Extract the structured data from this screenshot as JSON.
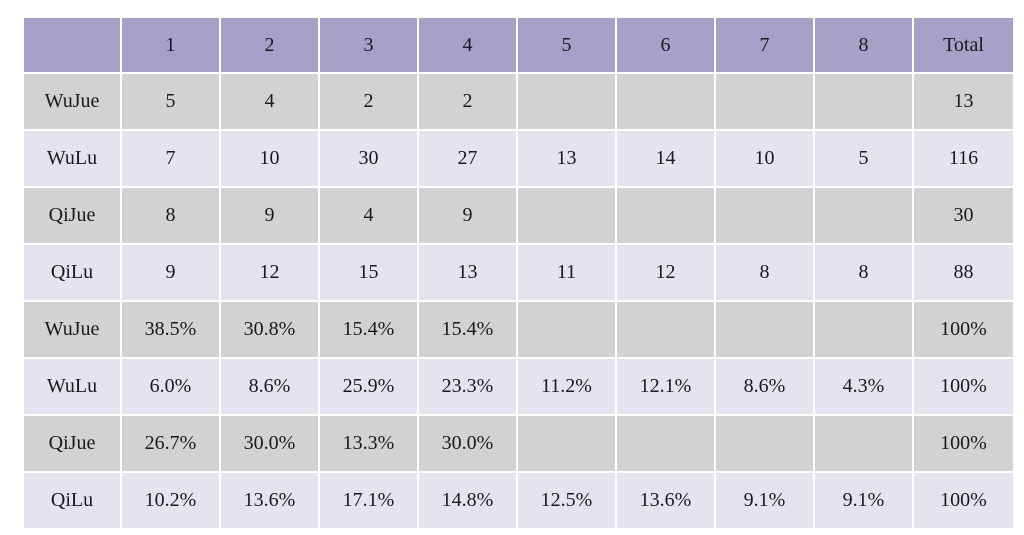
{
  "chart_data": {
    "type": "table",
    "columns": [
      "",
      "1",
      "2",
      "3",
      "4",
      "5",
      "6",
      "7",
      "8",
      "Total"
    ],
    "rows": [
      {
        "label": "WuJue",
        "cells": [
          "5",
          "4",
          "2",
          "2",
          "",
          "",
          "",
          "",
          "13"
        ]
      },
      {
        "label": "WuLu",
        "cells": [
          "7",
          "10",
          "30",
          "27",
          "13",
          "14",
          "10",
          "5",
          "116"
        ]
      },
      {
        "label": "QiJue",
        "cells": [
          "8",
          "9",
          "4",
          "9",
          "",
          "",
          "",
          "",
          "30"
        ]
      },
      {
        "label": "QiLu",
        "cells": [
          "9",
          "12",
          "15",
          "13",
          "11",
          "12",
          "8",
          "8",
          "88"
        ]
      },
      {
        "label": "WuJue",
        "cells": [
          "38.5%",
          "30.8%",
          "15.4%",
          "15.4%",
          "",
          "",
          "",
          "",
          "100%"
        ]
      },
      {
        "label": "WuLu",
        "cells": [
          "6.0%",
          "8.6%",
          "25.9%",
          "23.3%",
          "11.2%",
          "12.1%",
          "8.6%",
          "4.3%",
          "100%"
        ]
      },
      {
        "label": "QiJue",
        "cells": [
          "26.7%",
          "30.0%",
          "13.3%",
          "30.0%",
          "",
          "",
          "",
          "",
          "100%"
        ]
      },
      {
        "label": "QiLu",
        "cells": [
          "10.2%",
          "13.6%",
          "17.1%",
          "14.8%",
          "12.5%",
          "13.6%",
          "9.1%",
          "9.1%",
          "100%"
        ]
      }
    ]
  },
  "colors": {
    "header": "#a9a0c9",
    "row_dark": "#d2d2d4",
    "row_light": "#e6e3f0"
  }
}
